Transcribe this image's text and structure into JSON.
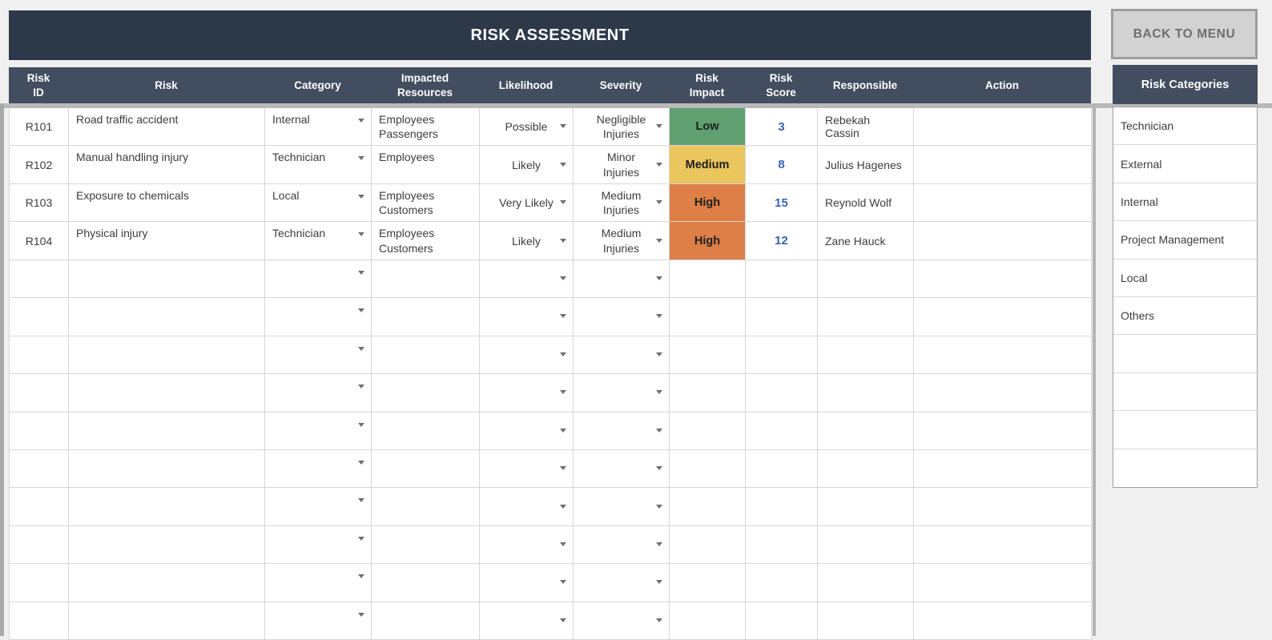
{
  "title": "RISK ASSESSMENT",
  "back_button_label": "BACK TO MENU",
  "colors": {
    "title_bar": "#2d3949",
    "header_row": "#424d5f",
    "impact_low": "#5f9f70",
    "impact_medium": "#ebc55d",
    "impact_high": "#dd7f46",
    "score_text": "#3a62b1",
    "back_button_bg": "#d2d2d2"
  },
  "table": {
    "columns": [
      {
        "key": "id",
        "lines": [
          "Risk",
          "ID"
        ]
      },
      {
        "key": "risk",
        "lines": [
          "Risk"
        ]
      },
      {
        "key": "category",
        "lines": [
          "Category"
        ]
      },
      {
        "key": "impacted",
        "lines": [
          "Impacted",
          "Resources"
        ]
      },
      {
        "key": "likelihood",
        "lines": [
          "Likelihood"
        ]
      },
      {
        "key": "severity",
        "lines": [
          "Severity"
        ]
      },
      {
        "key": "impact",
        "lines": [
          "Risk",
          "Impact"
        ]
      },
      {
        "key": "score",
        "lines": [
          "Risk",
          "Score"
        ]
      },
      {
        "key": "responsible",
        "lines": [
          "Responsible"
        ]
      },
      {
        "key": "action",
        "lines": [
          "Action"
        ]
      }
    ],
    "rows": [
      {
        "id": "R101",
        "risk": "Road traffic accident",
        "category": "Internal",
        "impacted": [
          "Employees",
          "Passengers"
        ],
        "likelihood": "Possible",
        "severity": [
          "Negligible",
          "Injuries"
        ],
        "impact": "Low",
        "impact_level": "low",
        "score": "3",
        "responsible": "Rebekah Cassin",
        "action": ""
      },
      {
        "id": "R102",
        "risk": "Manual handling injury",
        "category": "Technician",
        "impacted": [
          "Employees"
        ],
        "likelihood": "Likely",
        "severity": [
          "Minor",
          "Injuries"
        ],
        "impact": "Medium",
        "impact_level": "medium",
        "score": "8",
        "responsible": "Julius Hagenes",
        "action": ""
      },
      {
        "id": "R103",
        "risk": "Exposure to chemicals",
        "category": "Local",
        "impacted": [
          "Employees",
          "Customers"
        ],
        "likelihood": "Very Likely",
        "severity": [
          "Medium",
          "Injuries"
        ],
        "impact": "High",
        "impact_level": "high",
        "score": "15",
        "responsible": "Reynold Wolf",
        "action": ""
      },
      {
        "id": "R104",
        "risk": "Physical injury",
        "category": "Technician",
        "impacted": [
          "Employees",
          "Customers"
        ],
        "likelihood": "Likely",
        "severity": [
          "Medium",
          "Injuries"
        ],
        "impact": "High",
        "impact_level": "high",
        "score": "12",
        "responsible": "Zane Hauck",
        "action": ""
      }
    ],
    "empty_row_count": 10
  },
  "side_panel": {
    "header": "Risk Categories",
    "items": [
      "Technician",
      "External",
      "Internal",
      "Project Management",
      "Local",
      "Others",
      "",
      "",
      "",
      ""
    ]
  }
}
